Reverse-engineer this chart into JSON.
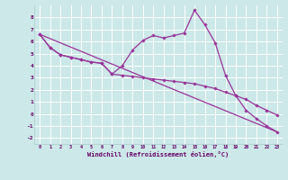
{
  "xlabel": "Windchill (Refroidissement éolien,°C)",
  "bg_color": "#cce8e8",
  "line_color": "#993399",
  "ylim": [
    -2.5,
    9.0
  ],
  "xlim": [
    -0.5,
    23.5
  ],
  "yticks": [
    -2,
    -1,
    0,
    1,
    2,
    3,
    4,
    5,
    6,
    7,
    8
  ],
  "xticks": [
    0,
    1,
    2,
    3,
    4,
    5,
    6,
    7,
    8,
    9,
    10,
    11,
    12,
    13,
    14,
    15,
    16,
    17,
    18,
    19,
    20,
    21,
    22,
    23
  ],
  "line1_x": [
    0,
    1,
    2,
    3,
    4,
    5,
    6,
    7,
    8,
    9,
    10,
    11,
    12,
    13,
    14,
    15,
    16,
    17,
    18,
    19,
    20,
    21,
    22,
    23
  ],
  "line1_y": [
    6.6,
    5.5,
    4.9,
    4.7,
    4.5,
    4.3,
    4.2,
    3.3,
    4.0,
    5.3,
    6.1,
    6.5,
    6.3,
    6.5,
    6.7,
    8.6,
    7.4,
    5.9,
    3.2,
    1.5,
    0.3,
    -0.4,
    -1.0,
    -1.5
  ],
  "line2_x": [
    0,
    1,
    2,
    3,
    4,
    5,
    6,
    7,
    8,
    9,
    10,
    11,
    12,
    13,
    14,
    15,
    16,
    17,
    18,
    19,
    20,
    21,
    22,
    23
  ],
  "line2_y": [
    6.6,
    5.5,
    4.9,
    4.7,
    4.5,
    4.3,
    4.2,
    3.3,
    3.2,
    3.1,
    3.0,
    2.9,
    2.8,
    2.7,
    2.6,
    2.5,
    2.3,
    2.1,
    1.8,
    1.5,
    1.2,
    0.7,
    0.3,
    -0.1
  ],
  "line3_x": [
    0,
    23
  ],
  "line3_y": [
    6.6,
    -1.5
  ]
}
